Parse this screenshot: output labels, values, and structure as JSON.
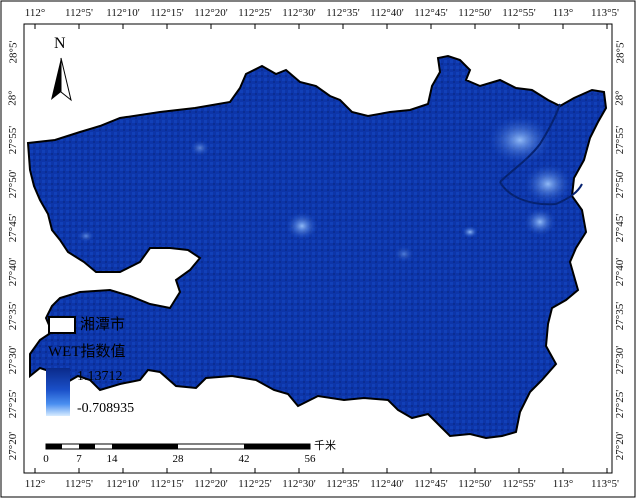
{
  "map": {
    "legend": {
      "boundary_label": "湘潭市",
      "index_title": "WET指数值",
      "max_value": "1.13712",
      "min_value": "-0.708935"
    },
    "north_arrow_label": "N",
    "scale_bar": {
      "unit": "千米",
      "labels": [
        "0",
        "7",
        "14",
        "28",
        "42",
        "56"
      ]
    },
    "longitude_ticks": [
      "112°",
      "112°5'",
      "112°10'",
      "112°15'",
      "112°20'",
      "112°25'",
      "112°30'",
      "112°35'",
      "112°40'",
      "112°45'",
      "112°50'",
      "112°55'",
      "113°",
      "113°5'"
    ],
    "latitude_ticks": [
      "28°5'",
      "28°",
      "27°55'",
      "27°50'",
      "27°45'",
      "27°40'",
      "27°35'",
      "27°30'",
      "27°25'",
      "27°20'"
    ],
    "colors": {
      "fill_dark": "#0b2f9a",
      "fill_mid": "#1a4fc8",
      "fill_light": "#d8ecff",
      "boundary": "#000000"
    }
  }
}
